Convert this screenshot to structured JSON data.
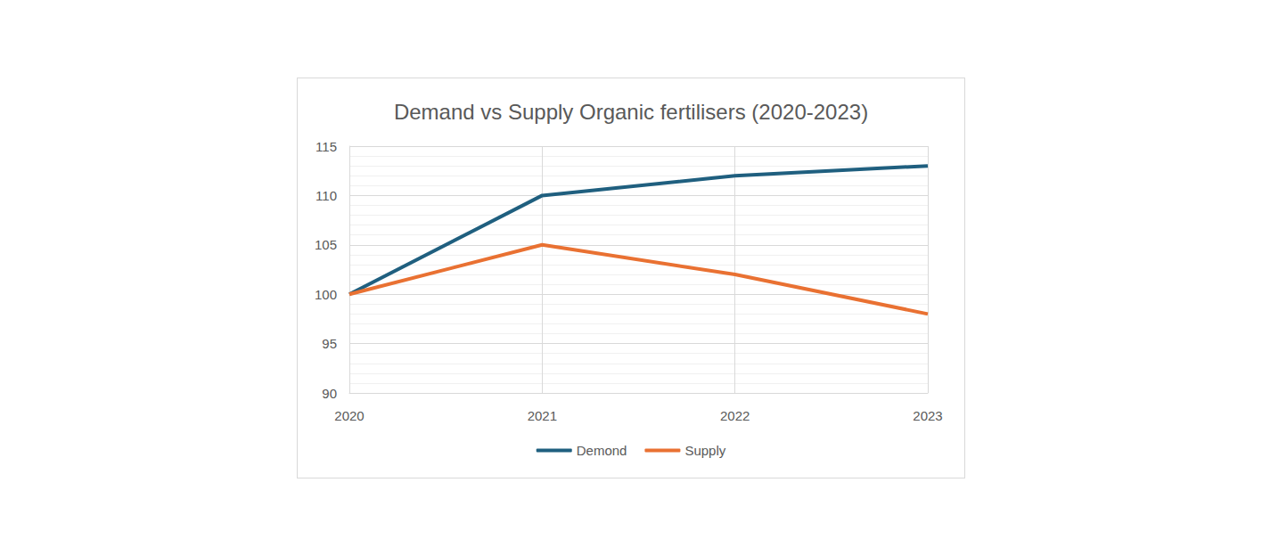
{
  "chart_data": {
    "type": "line",
    "title": "Demand vs Supply Organic fertilisers (2020-2023)",
    "categories": [
      "2020",
      "2021",
      "2022",
      "2023"
    ],
    "series": [
      {
        "name": "Demond",
        "color": "#1f5f7f",
        "values": [
          100,
          110,
          112,
          113
        ]
      },
      {
        "name": "Supply",
        "color": "#e97132",
        "values": [
          100,
          105,
          102,
          98
        ]
      }
    ],
    "ylim": [
      90,
      115
    ],
    "yticks": [
      90,
      95,
      100,
      105,
      110,
      115
    ],
    "grid": true,
    "legend": "bottom"
  }
}
